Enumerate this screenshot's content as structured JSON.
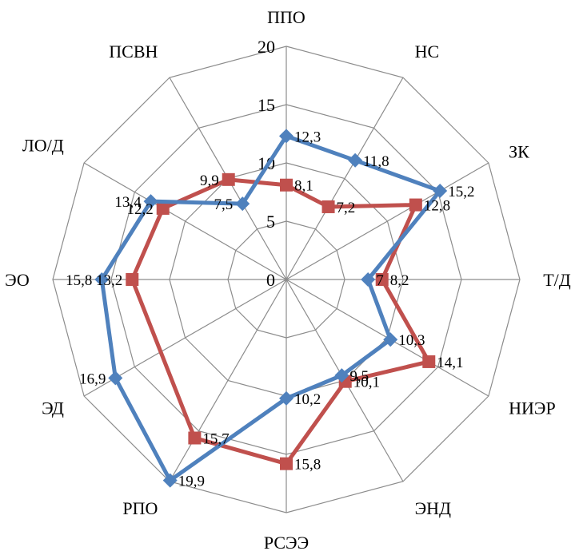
{
  "chart_data": {
    "type": "radar",
    "categories": [
      "ППО",
      "НС",
      "ЗК",
      "Т/Д",
      "НИЭР",
      "ЭНД",
      "РСЭЭ",
      "РПО",
      "ЭД",
      "ЭО",
      "ЛО/Д",
      "ПСВН"
    ],
    "tick_labels": [
      "0",
      "5",
      "10",
      "15",
      "20"
    ],
    "rlim": [
      0,
      20
    ],
    "grid": true,
    "legend": "none",
    "series": [
      {
        "color": "#4f81bd",
        "marker": "diamond",
        "values": [
          12.3,
          11.8,
          15.2,
          7,
          10.3,
          9.5,
          10.2,
          19.9,
          16.9,
          15.8,
          13.4,
          7.5
        ],
        "labels": [
          "12,3",
          "11,8",
          "15,2",
          "7",
          "10,3",
          "9,5",
          "10,2",
          "19,9",
          "16,9",
          "15,8",
          "13,4",
          "7,5"
        ]
      },
      {
        "color": "#c0504d",
        "marker": "square",
        "values": [
          8.1,
          7.2,
          12.8,
          8.2,
          14.1,
          10.1,
          15.8,
          15.7,
          null,
          13.2,
          12.2,
          9.9
        ],
        "labels": [
          "8,1",
          "7,2",
          "12,8",
          "8,2",
          "14,1",
          "10,1",
          "15,8",
          "15,7",
          "",
          "13,2",
          "12,2",
          "9,9"
        ]
      }
    ]
  }
}
